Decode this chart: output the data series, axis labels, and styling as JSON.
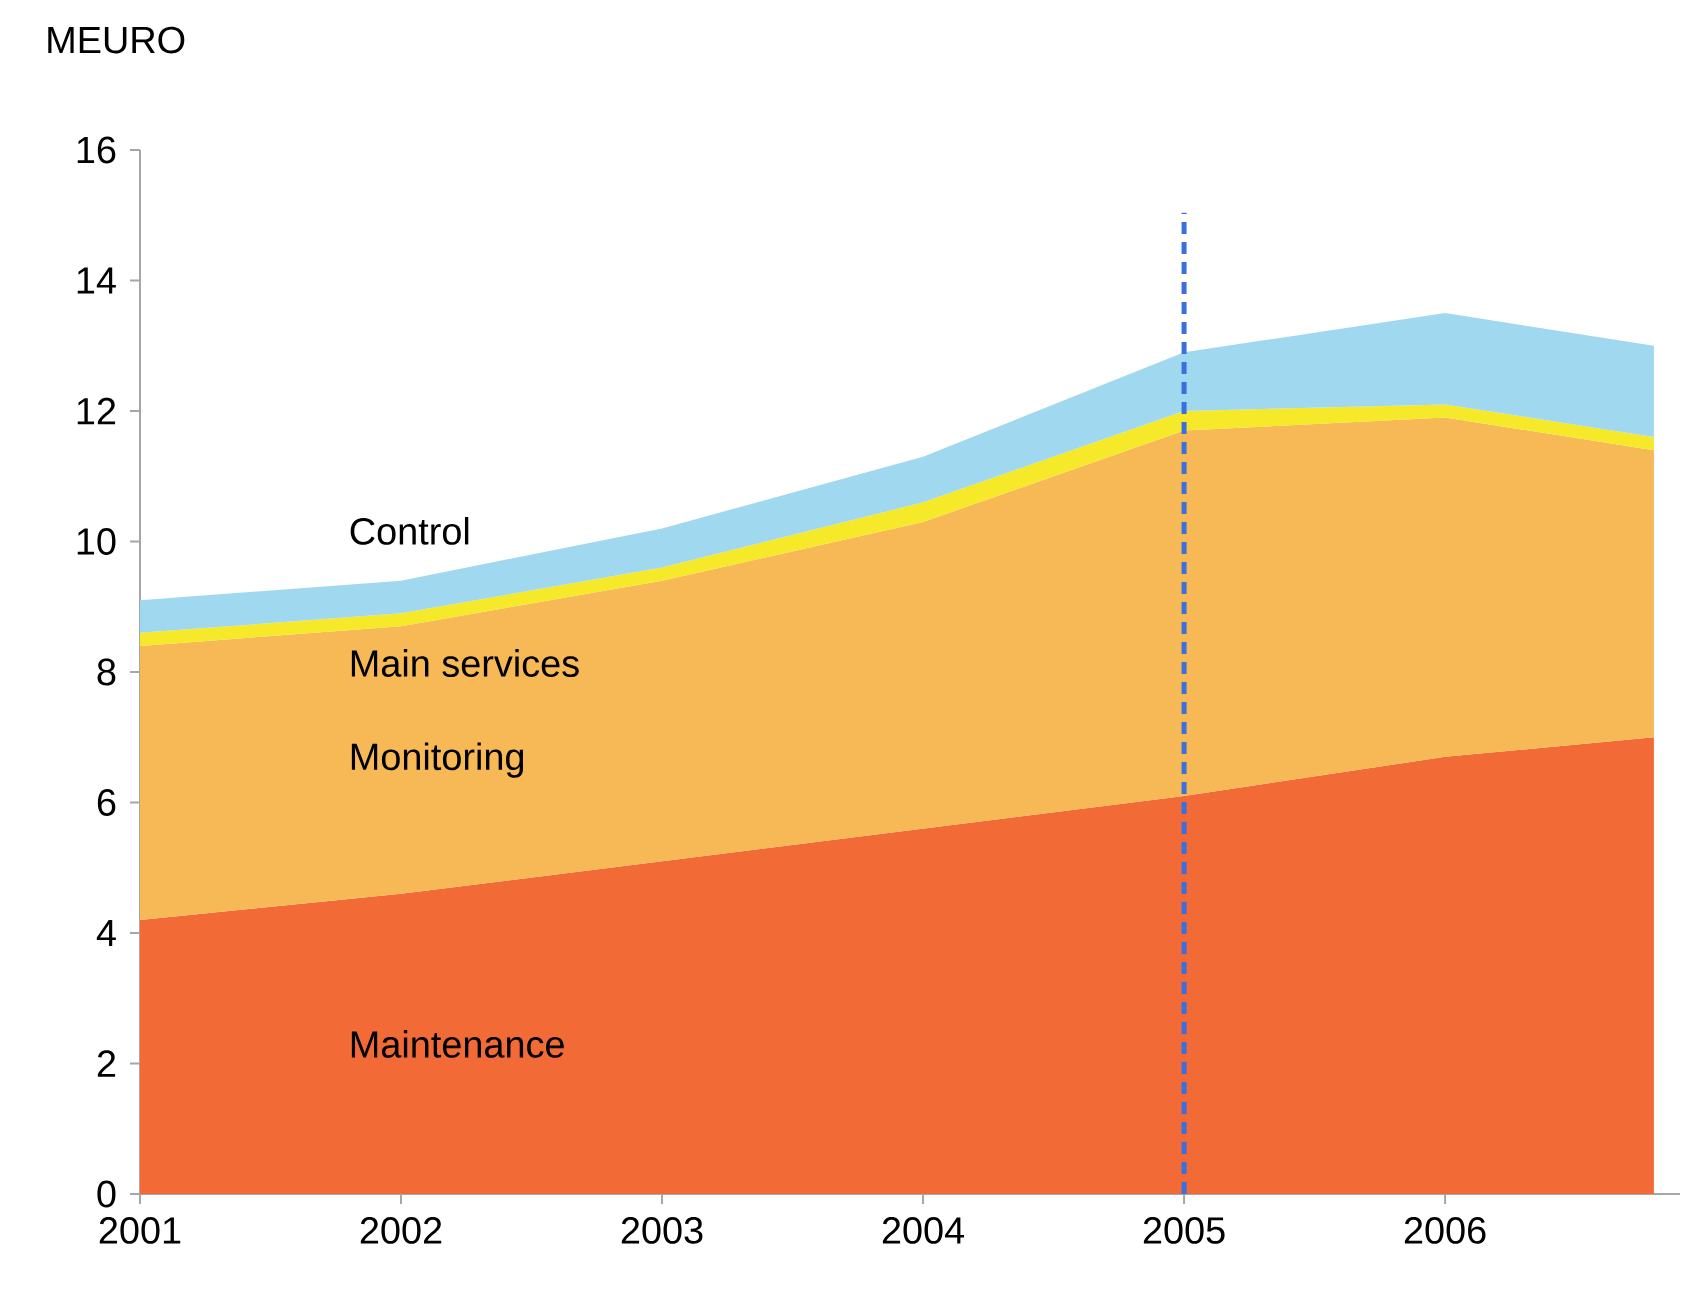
{
  "chart_data": {
    "type": "area",
    "stacked": true,
    "ylabel": "MEURO",
    "x": [
      2001,
      2002,
      2003,
      2004,
      2005,
      2006,
      2006.8
    ],
    "series": [
      {
        "name": "Maintenance",
        "color": "#f26a35",
        "values": [
          4.2,
          4.6,
          5.1,
          5.6,
          6.1,
          6.7,
          7.0
        ]
      },
      {
        "name": "Monitoring",
        "color": "#f7b955",
        "values": [
          4.2,
          4.1,
          4.3,
          4.7,
          5.6,
          5.2,
          4.4
        ]
      },
      {
        "name": "Main services",
        "color": "#f5e92a",
        "values": [
          0.2,
          0.2,
          0.2,
          0.3,
          0.3,
          0.2,
          0.2
        ]
      },
      {
        "name": "Control",
        "color": "#9fd8ef",
        "values": [
          0.5,
          0.5,
          0.6,
          0.7,
          0.9,
          1.4,
          1.4
        ]
      }
    ],
    "xlim": [
      2001,
      2006.9
    ],
    "ylim": [
      0,
      16
    ],
    "xticks": [
      2001,
      2002,
      2003,
      2004,
      2005,
      2006
    ],
    "yticks": [
      0,
      2,
      4,
      6,
      8,
      10,
      12,
      14,
      16
    ],
    "ref_lines": [
      {
        "axis": "x",
        "value": 2005,
        "color": "#3a6fe0",
        "line_style": "dashed"
      }
    ],
    "grid": false
  }
}
